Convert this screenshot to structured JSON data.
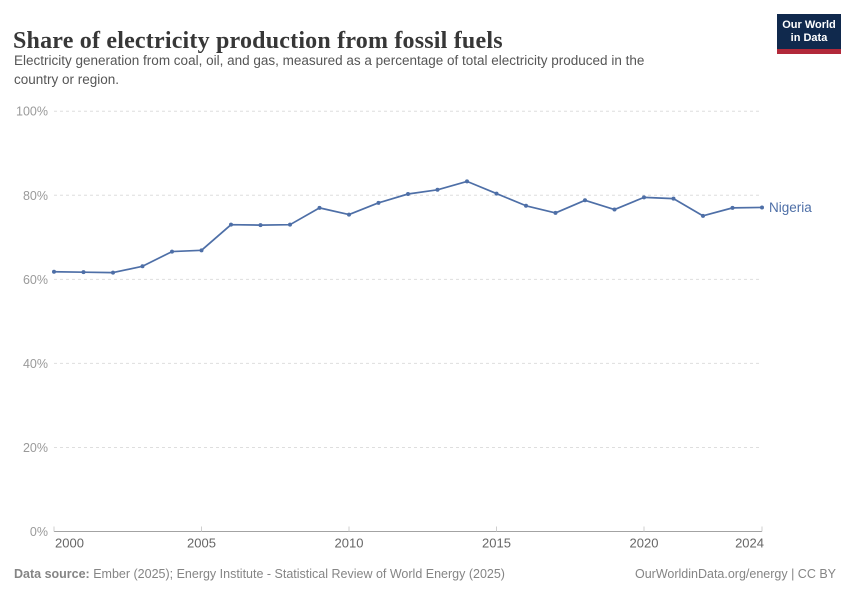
{
  "header": {
    "title": "Share of electricity production from fossil fuels",
    "subtitle_line1": "Electricity generation from coal, oil, and gas, measured as a percentage of total electricity produced in the",
    "subtitle_line2": "country or region.",
    "logo": {
      "line1": "Our World",
      "line2": "in Data",
      "bg_color": "#10294d",
      "bar_color": "#b2293a"
    }
  },
  "chart_data": {
    "type": "line",
    "title": "Share of electricity production from fossil fuels",
    "xlabel": "",
    "ylabel": "",
    "x": [
      2000,
      2001,
      2002,
      2003,
      2004,
      2005,
      2006,
      2007,
      2008,
      2009,
      2010,
      2011,
      2012,
      2013,
      2014,
      2015,
      2016,
      2017,
      2018,
      2019,
      2020,
      2021,
      2022,
      2023,
      2024
    ],
    "series": [
      {
        "name": "Nigeria",
        "color": "#4e6fa7",
        "values": [
          61.8,
          61.7,
          61.6,
          63.1,
          66.6,
          66.9,
          73.0,
          72.9,
          73.0,
          77.0,
          75.4,
          78.2,
          80.3,
          81.3,
          83.3,
          80.4,
          77.5,
          75.8,
          78.8,
          76.6,
          79.5,
          79.2,
          75.1,
          77.0,
          77.1
        ]
      }
    ],
    "xticks": [
      2000,
      2005,
      2010,
      2015,
      2020,
      2024
    ],
    "yticks": [
      0,
      20,
      40,
      60,
      80,
      100
    ],
    "ytick_suffix": "%",
    "ylim": [
      0,
      100
    ],
    "xlim": [
      2000,
      2024
    ],
    "grid": "dashed-horizontal",
    "legend_position": "end-of-line",
    "end_label": "Nigeria",
    "colors": {
      "gridline": "#dedede",
      "axis_line": "#a3a3a3",
      "tick_mark": "#cfcfcf",
      "y_tick_label": "#9a9a9a",
      "x_tick_label": "#666666"
    }
  },
  "footer": {
    "source_label": "Data source:",
    "source_text": " Ember (2025); Energy Institute - Statistical Review of World Energy (2025)",
    "right_text": "OurWorldinData.org/energy | CC BY"
  }
}
